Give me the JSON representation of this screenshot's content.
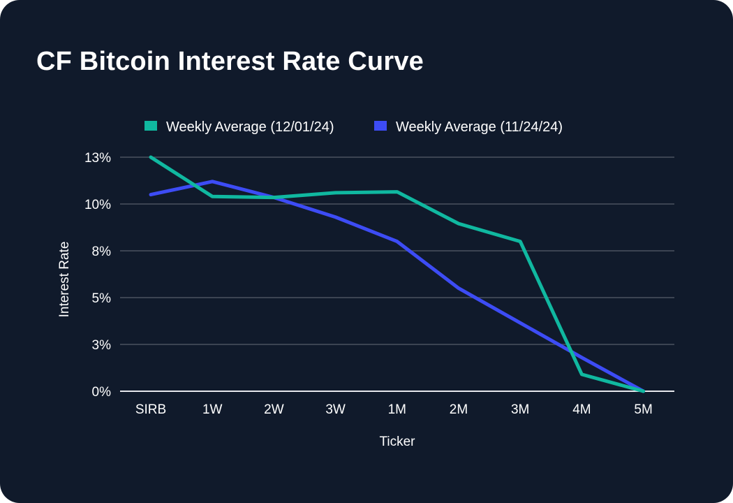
{
  "chart_data": {
    "type": "line",
    "title": "CF Bitcoin Interest Rate Curve",
    "xlabel": "Ticker",
    "ylabel": "Interest Rate",
    "categories": [
      "SIRB",
      "1W",
      "2W",
      "3W",
      "1M",
      "2M",
      "3M",
      "4M",
      "5M"
    ],
    "yticks": [
      0,
      2.5,
      5,
      7.5,
      10,
      12.5
    ],
    "ytick_labels": [
      "0%",
      "3%",
      "5%",
      "8%",
      "10%",
      "13%"
    ],
    "ylim": [
      0,
      12.5
    ],
    "grid": true,
    "legend_position": "top-center",
    "series": [
      {
        "name": "Weekly Average (12/01/24)",
        "color": "#10b8a0",
        "values": [
          12.5,
          10.4,
          10.35,
          10.6,
          10.65,
          8.95,
          8.0,
          0.9,
          0.0
        ]
      },
      {
        "name": "Weekly Average (11/24/24)",
        "color": "#3d4cf5",
        "values": [
          10.5,
          11.2,
          10.35,
          9.3,
          8.0,
          5.5,
          3.65,
          1.8,
          0.0
        ]
      }
    ]
  }
}
